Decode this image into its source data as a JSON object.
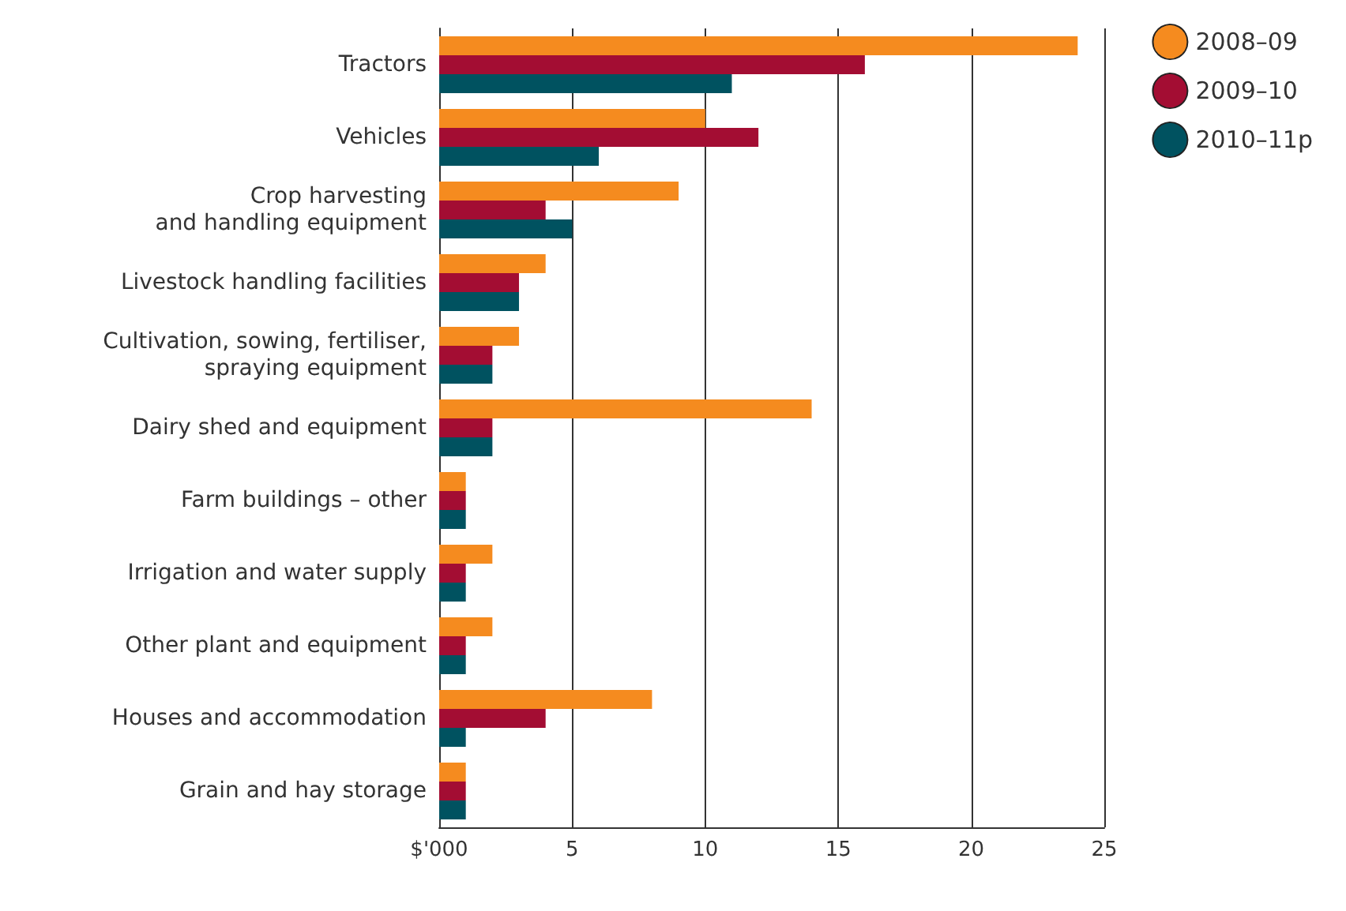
{
  "chart_data": {
    "type": "bar",
    "orientation": "horizontal",
    "categories": [
      "Tractors",
      "Vehicles",
      "Crop harvesting\nand handling equipment",
      "Livestock handling facilities",
      "Cultivation, sowing, fertiliser,\nspraying equipment",
      "Dairy shed and equipment",
      "Farm buildings – other",
      "Irrigation and water supply",
      "Other plant and equipment",
      "Houses and accommodation",
      "Grain and hay storage"
    ],
    "series": [
      {
        "name": "2008–09",
        "color": "#f58b1f",
        "values": [
          24,
          10,
          9,
          4,
          3,
          14,
          1,
          2,
          2,
          8,
          1
        ]
      },
      {
        "name": "2009–10",
        "color": "#a30d33",
        "values": [
          16,
          12,
          4,
          3,
          2,
          2,
          1,
          1,
          1,
          4,
          1
        ]
      },
      {
        "name": "2010–11p",
        "color": "#005260",
        "values": [
          11,
          6,
          5,
          3,
          2,
          2,
          1,
          1,
          1,
          1,
          1
        ]
      }
    ],
    "xlim": [
      0,
      25
    ],
    "xticks": [
      {
        "value": 0,
        "label": "$'000"
      },
      5,
      10,
      15,
      20,
      25
    ],
    "grid": "x",
    "legend": "top right"
  }
}
